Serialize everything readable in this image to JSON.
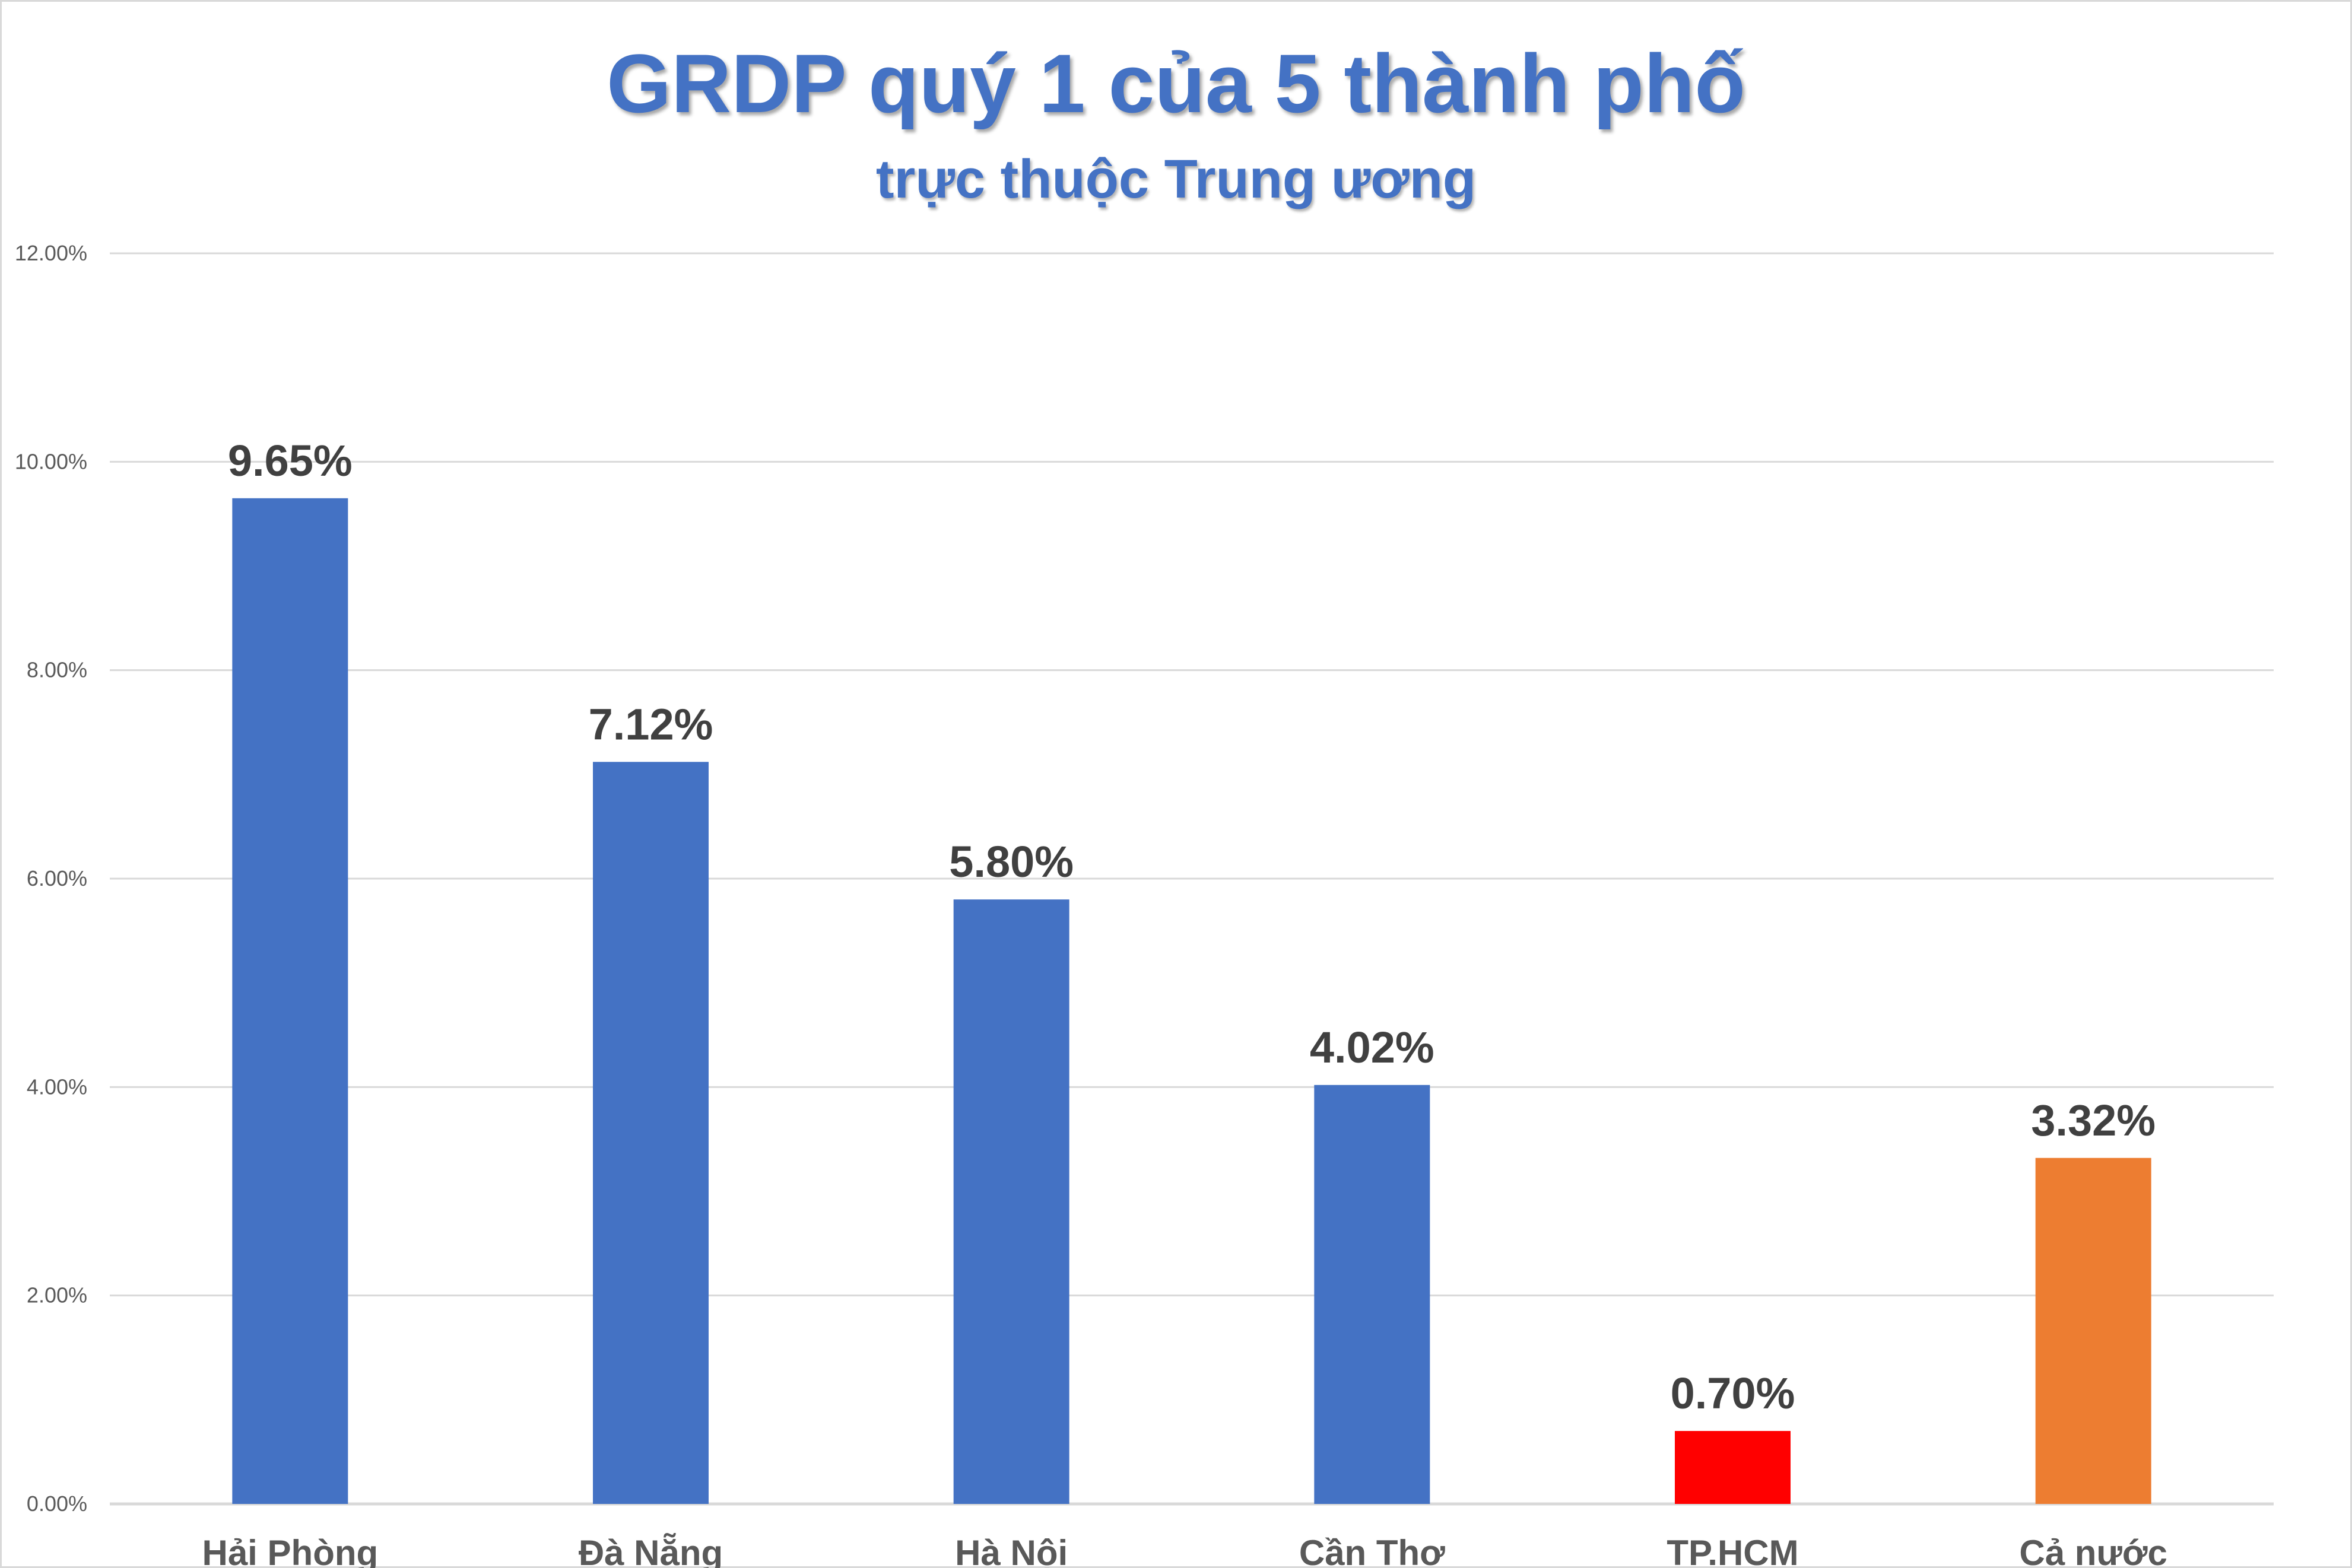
{
  "chart_data": {
    "type": "bar",
    "title": "GRDP quý 1 của 5 thành phố",
    "subtitle": "trực thuộc Trung ương",
    "categories": [
      "Hải Phòng",
      "Đà Nẵng",
      "Hà Nội",
      "Cần Thơ",
      "TP.HCM",
      "Cả nước"
    ],
    "values": [
      9.65,
      7.12,
      5.8,
      4.02,
      0.7,
      3.32
    ],
    "data_labels": [
      "9.65%",
      "7.12%",
      "5.80%",
      "4.02%",
      "0.70%",
      "3.32%"
    ],
    "colors": [
      "#4472C4",
      "#4472C4",
      "#4472C4",
      "#4472C4",
      "#FF0000",
      "#ED7D31"
    ],
    "ylim": [
      0,
      12
    ],
    "yticks": [
      0,
      2,
      4,
      6,
      8,
      10,
      12
    ],
    "ytick_labels": [
      "0.00%",
      "2.00%",
      "4.00%",
      "6.00%",
      "8.00%",
      "10.00%",
      "12.00%"
    ],
    "xlabel": "",
    "ylabel": "",
    "grid": true,
    "legend": "none"
  }
}
